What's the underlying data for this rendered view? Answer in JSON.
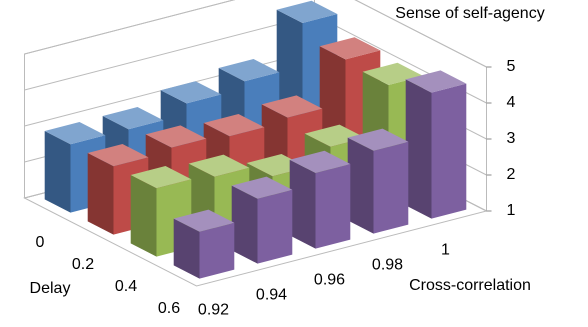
{
  "chart_data": {
    "type": "bar3d",
    "title": "Sense of self-agency",
    "x_label": "Cross-correlation",
    "y_label": "Delay",
    "categories": [
      "0.92",
      "0.94",
      "0.96",
      "0.98",
      "1"
    ],
    "series": [
      {
        "name": "0",
        "color": "#4a7ebb",
        "values": [
          2.9,
          2.9,
          3.2,
          3.4,
          4.6
        ]
      },
      {
        "name": "0.2",
        "color": "#be4b48",
        "values": [
          2.9,
          3.0,
          2.9,
          3.0,
          4.2
        ]
      },
      {
        "name": "0.4",
        "color": "#98b954",
        "values": [
          2.9,
          2.8,
          2.4,
          2.8,
          4.1
        ]
      },
      {
        "name": "0.6",
        "color": "#7d60a0",
        "values": [
          2.3,
          2.8,
          3.1,
          3.3,
          4.5
        ]
      }
    ],
    "zlim": [
      1,
      5
    ],
    "zticks": [
      1,
      2,
      3,
      4,
      5
    ],
    "grid": true
  }
}
